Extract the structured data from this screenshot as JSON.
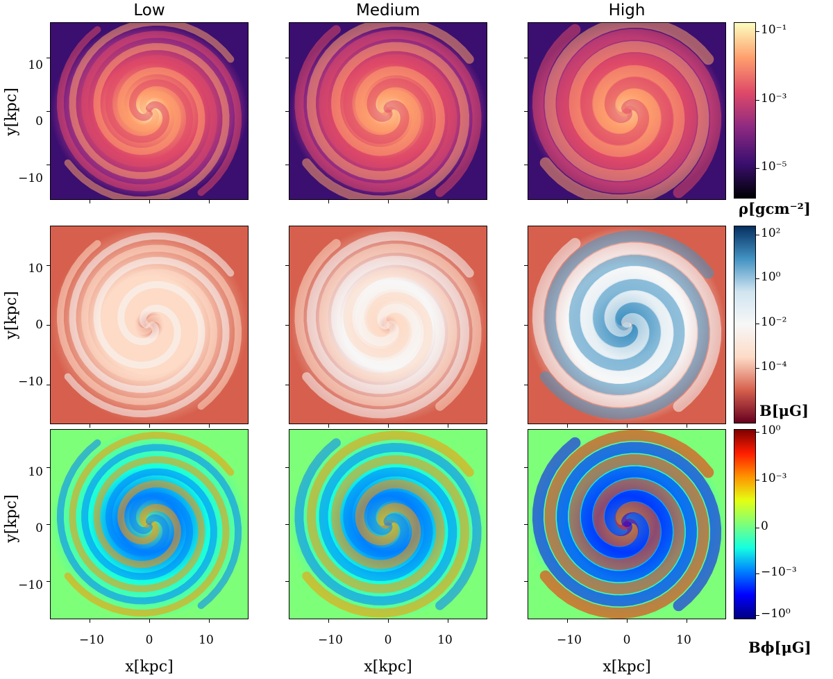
{
  "columns": [
    "Low",
    "Medium",
    "High"
  ],
  "y_axis_label": "y[kpc]",
  "x_axis_label": "x[kpc]",
  "y_ticks": [
    "10",
    "0",
    "−10"
  ],
  "x_ticks": [
    "−10",
    "0",
    "10"
  ],
  "rows": [
    {
      "quantity": "density",
      "colorbar_label": "ρ[gcm⁻²]",
      "colorbar_ticks": [
        "10⁻¹",
        "10⁻³",
        "10⁻⁵"
      ],
      "colormap": [
        "#000004",
        "#3b0f70",
        "#8c2981",
        "#de4968",
        "#fe9f6d",
        "#fcfdbf"
      ]
    },
    {
      "quantity": "magnetic-field",
      "colorbar_label": "B[μG]",
      "colorbar_ticks": [
        "10²",
        "10⁰",
        "10⁻²",
        "10⁻⁴"
      ],
      "colormap": [
        "#67001f",
        "#d6604d",
        "#fddbc7",
        "#f7f7f7",
        "#d1e5f0",
        "#4393c3",
        "#053061"
      ]
    },
    {
      "quantity": "azimuthal-field",
      "colorbar_label": "Bϕ[μG]",
      "colorbar_ticks": [
        "10⁰",
        "10⁻³",
        "0",
        "−10⁻³",
        "−10⁰"
      ],
      "colormap": [
        "#00007f",
        "#0000ff",
        "#0080ff",
        "#15ffe1",
        "#7dff7a",
        "#e4ff13",
        "#ff9400",
        "#ff1d00",
        "#7f0000"
      ]
    }
  ]
}
